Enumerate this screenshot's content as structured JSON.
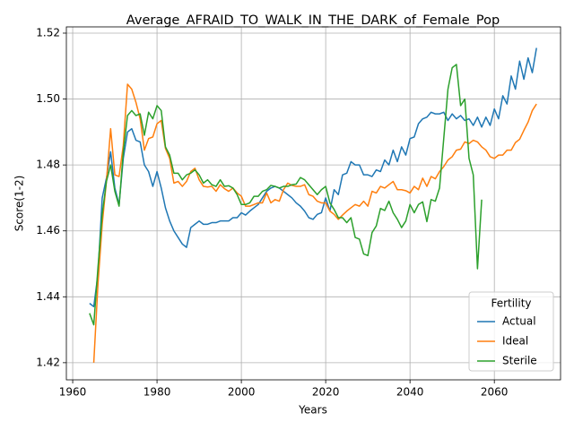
{
  "chart_data": {
    "type": "line",
    "title": "Average_AFRAID_TO_WALK_IN_THE_DARK_of_Female_Pop",
    "x_label": "Years",
    "y_label": "Score(1-2)",
    "xlim": [
      1958.5,
      2075.7
    ],
    "ylim": [
      1.4148,
      1.5219
    ],
    "xticks": [
      1960,
      1980,
      2000,
      2020,
      2040,
      2060
    ],
    "yticks": [
      1.42,
      1.44,
      1.46,
      1.48,
      {
        "value": 1.5,
        "label": "1.50"
      },
      1.52
    ],
    "grid": true,
    "legend": "lower right",
    "legend_title": "Fertility",
    "x": [
      1964,
      1965,
      1966,
      1967,
      1968,
      1969,
      1970,
      1971,
      1972,
      1973,
      1974,
      1975,
      1976,
      1977,
      1978,
      1979,
      1980,
      1981,
      1982,
      1983,
      1984,
      1985,
      1986,
      1987,
      1988,
      1989,
      1990,
      1991,
      1992,
      1993,
      1994,
      1995,
      1996,
      1997,
      1998,
      1999,
      2000,
      2001,
      2002,
      2003,
      2004,
      2005,
      2006,
      2007,
      2008,
      2009,
      2010,
      2011,
      2012,
      2013,
      2014,
      2015,
      2016,
      2017,
      2018,
      2019,
      2020,
      2021,
      2022,
      2023,
      2024,
      2025,
      2026,
      2027,
      2028,
      2029,
      2030,
      2031,
      2032,
      2033,
      2034,
      2035,
      2036,
      2037,
      2038,
      2039,
      2040,
      2041,
      2042,
      2043,
      2044,
      2045,
      2046,
      2047,
      2048,
      2049,
      2050,
      2051,
      2052,
      2053,
      2054,
      2055,
      2056,
      2057,
      2058,
      2059,
      2060,
      2061,
      2062,
      2063,
      2064,
      2065,
      2066,
      2067,
      2068,
      2069,
      2070
    ],
    "series": [
      {
        "name": "Actual",
        "color": "#1f77b4",
        "values": [
          1.438,
          1.437,
          1.447,
          1.47,
          1.476,
          1.484,
          1.473,
          1.468,
          1.482,
          1.49,
          1.491,
          1.4875,
          1.487,
          1.48,
          1.478,
          1.4735,
          1.478,
          1.473,
          1.467,
          1.463,
          1.46,
          1.458,
          1.456,
          1.455,
          1.461,
          1.462,
          1.463,
          1.462,
          1.462,
          1.4625,
          1.4625,
          1.463,
          1.463,
          1.463,
          1.464,
          1.464,
          1.4655,
          1.4648,
          1.466,
          1.467,
          1.468,
          1.47,
          1.472,
          1.473,
          1.4735,
          1.473,
          1.472,
          1.471,
          1.47,
          1.4685,
          1.4675,
          1.466,
          1.464,
          1.4635,
          1.465,
          1.4655,
          1.47,
          1.466,
          1.4725,
          1.471,
          1.477,
          1.4775,
          1.481,
          1.48,
          1.48,
          1.477,
          1.477,
          1.4765,
          1.4785,
          1.478,
          1.4815,
          1.48,
          1.4845,
          1.481,
          1.4855,
          1.483,
          1.488,
          1.4885,
          1.4925,
          1.494,
          1.4945,
          1.496,
          1.4955,
          1.4955,
          1.496,
          1.4935,
          1.4955,
          1.494,
          1.495,
          1.4935,
          1.494,
          1.492,
          1.4945,
          1.4915,
          1.4945,
          1.492,
          1.497,
          1.494,
          1.501,
          1.4985,
          1.507,
          1.503,
          1.5115,
          1.506,
          1.5125,
          1.508,
          1.5155
        ]
      },
      {
        "name": "Ideal",
        "color": "#ff7f0e",
        "values": [
          null,
          1.42,
          1.444,
          1.462,
          1.475,
          1.491,
          1.477,
          1.4765,
          1.486,
          1.5045,
          1.503,
          1.499,
          1.494,
          1.4845,
          1.488,
          1.4885,
          1.4925,
          1.4935,
          1.485,
          1.482,
          1.4745,
          1.475,
          1.4735,
          1.475,
          1.478,
          1.479,
          1.4755,
          1.4735,
          1.4733,
          1.4735,
          1.472,
          1.474,
          1.4728,
          1.472,
          1.473,
          1.4715,
          1.4705,
          1.4675,
          1.4675,
          1.468,
          1.4685,
          1.4685,
          1.4715,
          1.4685,
          1.4695,
          1.469,
          1.4725,
          1.4745,
          1.4738,
          1.4735,
          1.4735,
          1.474,
          1.471,
          1.4705,
          1.469,
          1.4685,
          1.4685,
          1.466,
          1.465,
          1.4635,
          1.4648,
          1.466,
          1.467,
          1.468,
          1.4675,
          1.469,
          1.4675,
          1.472,
          1.4715,
          1.4735,
          1.473,
          1.474,
          1.475,
          1.4725,
          1.4725,
          1.4722,
          1.4715,
          1.4735,
          1.4725,
          1.476,
          1.4735,
          1.4765,
          1.4758,
          1.478,
          1.4795,
          1.4815,
          1.4825,
          1.4845,
          1.4848,
          1.487,
          1.4865,
          1.4875,
          1.487,
          1.4855,
          1.4845,
          1.4825,
          1.482,
          1.483,
          1.483,
          1.4845,
          1.4845,
          1.4868,
          1.4878,
          1.4905,
          1.493,
          1.4965,
          1.4985
        ]
      },
      {
        "name": "Sterile",
        "color": "#2ca02c",
        "values": [
          1.435,
          1.4315,
          1.449,
          1.465,
          1.475,
          1.48,
          1.472,
          1.4675,
          1.484,
          1.495,
          1.4965,
          1.495,
          1.4955,
          1.489,
          1.496,
          1.494,
          1.498,
          1.4965,
          1.4855,
          1.483,
          1.4775,
          1.4775,
          1.4755,
          1.477,
          1.4775,
          1.4785,
          1.477,
          1.4745,
          1.4755,
          1.474,
          1.4735,
          1.4755,
          1.4735,
          1.4737,
          1.473,
          1.471,
          1.468,
          1.468,
          1.4685,
          1.4705,
          1.4705,
          1.472,
          1.4725,
          1.4738,
          1.4735,
          1.473,
          1.4735,
          1.4735,
          1.474,
          1.4742,
          1.4762,
          1.4755,
          1.474,
          1.4725,
          1.471,
          1.4725,
          1.4735,
          1.4685,
          1.4665,
          1.464,
          1.464,
          1.4625,
          1.464,
          1.458,
          1.4575,
          1.453,
          1.4525,
          1.4595,
          1.4615,
          1.4668,
          1.4662,
          1.469,
          1.4655,
          1.4635,
          1.461,
          1.463,
          1.468,
          1.4655,
          1.468,
          1.4688,
          1.4628,
          1.4695,
          1.469,
          1.473,
          1.488,
          1.503,
          1.5095,
          1.5105,
          1.498,
          1.5,
          1.482,
          1.477,
          1.4485,
          1.4695,
          null,
          null,
          null,
          null,
          null,
          null,
          null,
          null,
          null,
          null,
          null,
          null,
          null
        ]
      }
    ]
  }
}
